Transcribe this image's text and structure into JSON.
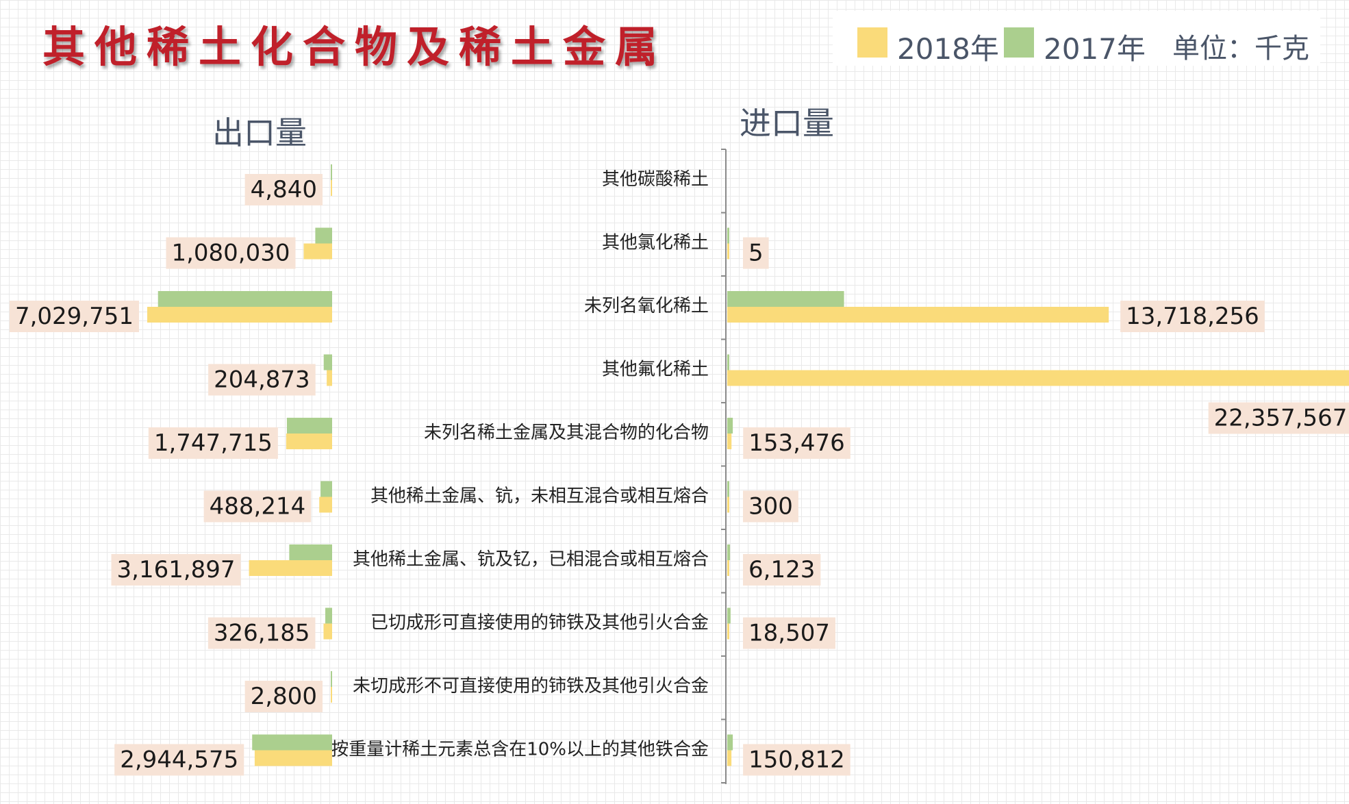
{
  "title": "其他稀土化合物及稀土金属",
  "legend": {
    "items": [
      {
        "label": "2018年",
        "color": "#fadb7a"
      },
      {
        "label": "2017年",
        "color": "#abcf8e"
      }
    ],
    "unit": "单位：千克"
  },
  "panels": {
    "export_title": "出口量",
    "import_title": "进口量"
  },
  "chart_data": {
    "type": "bar",
    "orientation": "horizontal-butterfly",
    "categories": [
      "其他碳酸稀土",
      "其他氯化稀土",
      "未列名氧化稀土",
      "其他氟化稀土",
      "未列名稀土金属及其混合物的化合物",
      "其他稀土金属、钪，未相互混合或相互熔合",
      "其他稀土金属、钪及钇，已相混合或相互熔合",
      "已切成形可直接使用的铈铁及其他引火合金",
      "未切成形不可直接使用的铈铁及其他引火合金",
      "按重量计稀土元素总含在10%以上的其他铁合金"
    ],
    "export": {
      "series": [
        {
          "name": "2018年",
          "color": "#fadb7a",
          "values": [
            4840,
            1080030,
            7029751,
            204873,
            1747715,
            488214,
            3161897,
            326185,
            2800,
            2944575
          ],
          "labels": [
            "4,840",
            "1,080,030",
            "7,029,751",
            "204,873",
            "1,747,715",
            "488,214",
            "3,161,897",
            "326,185",
            "2,800",
            "2,944,575"
          ]
        },
        {
          "name": "2017年",
          "color": "#abcf8e",
          "values": [
            10000,
            640000,
            6620000,
            320000,
            1720000,
            440000,
            1630000,
            260000,
            20000,
            3040000
          ]
        }
      ]
    },
    "import": {
      "series": [
        {
          "name": "2018年",
          "color": "#fadb7a",
          "values": [
            0,
            5,
            13718256,
            22357567,
            153476,
            300,
            6123,
            18507,
            0,
            150812
          ],
          "labels": [
            "",
            "5",
            "13,718,256",
            "22,357,567",
            "153,476",
            "300",
            "6,123",
            "18,507",
            "",
            "150,812"
          ]
        },
        {
          "name": "2017年",
          "color": "#abcf8e",
          "values": [
            0,
            30000,
            4200000,
            50000,
            200000,
            30000,
            100000,
            120000,
            0,
            200000
          ]
        }
      ]
    },
    "grid": true,
    "legend_position": "top-right"
  }
}
